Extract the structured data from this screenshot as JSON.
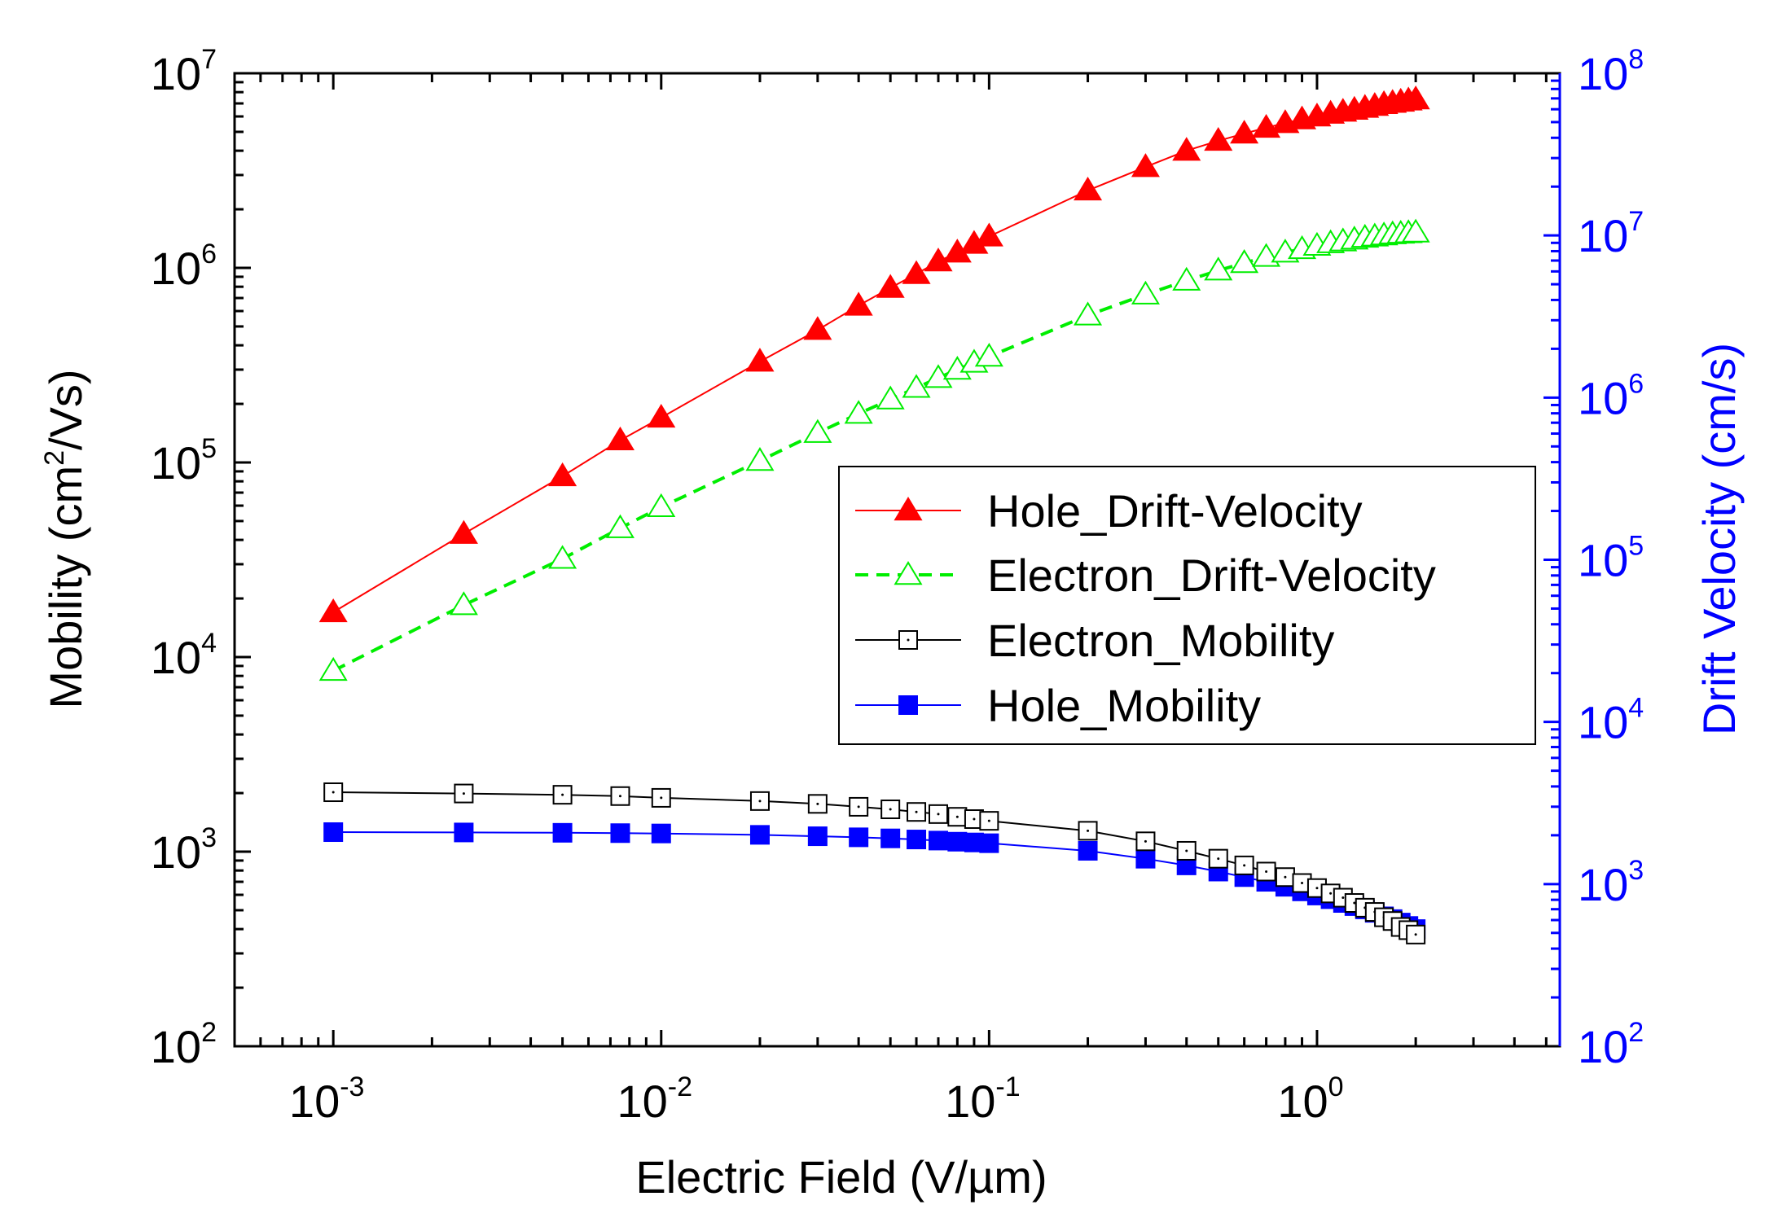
{
  "chart_data": {
    "type": "line",
    "title": "",
    "x_axis": {
      "label": "Electric Field (V/µm)",
      "scale": "log",
      "range": [
        0.0005,
        5.5
      ],
      "ticks": [
        {
          "base": "10",
          "exp": "-3"
        },
        {
          "base": "10",
          "exp": "-2"
        },
        {
          "base": "10",
          "exp": "-1"
        },
        {
          "base": "10",
          "exp": "0"
        }
      ]
    },
    "y_axis_left": {
      "label": "Mobility (cm²/Vs)",
      "label_parts": {
        "pre": "Mobility (cm",
        "sup": "2",
        "post": "/Vs)"
      },
      "scale": "log",
      "range": [
        100,
        10000000
      ],
      "ticks": [
        {
          "base": "10",
          "exp": "2"
        },
        {
          "base": "10",
          "exp": "3"
        },
        {
          "base": "10",
          "exp": "4"
        },
        {
          "base": "10",
          "exp": "5"
        },
        {
          "base": "10",
          "exp": "6"
        },
        {
          "base": "10",
          "exp": "7"
        }
      ]
    },
    "y_axis_right": {
      "label": "Drift Velocity (cm/s)",
      "scale": "log",
      "range": [
        100,
        100000000
      ],
      "color": "#0000ff",
      "ticks": [
        {
          "base": "10",
          "exp": "2"
        },
        {
          "base": "10",
          "exp": "3"
        },
        {
          "base": "10",
          "exp": "4"
        },
        {
          "base": "10",
          "exp": "5"
        },
        {
          "base": "10",
          "exp": "6"
        },
        {
          "base": "10",
          "exp": "7"
        },
        {
          "base": "10",
          "exp": "8"
        }
      ]
    },
    "x": [
      0.001,
      0.0025,
      0.005,
      0.0075,
      0.01,
      0.02,
      0.03,
      0.04,
      0.05,
      0.06,
      0.07,
      0.08,
      0.09,
      0.1,
      0.2,
      0.3,
      0.4,
      0.5,
      0.6,
      0.7,
      0.8,
      0.9,
      1.0,
      1.1,
      1.2,
      1.3,
      1.4,
      1.5,
      1.6,
      1.7,
      1.8,
      1.9,
      2.0
    ],
    "series": [
      {
        "name": "Hole_Drift-Velocity",
        "axis": "left",
        "color": "#ff0000",
        "line_style": "solid",
        "marker": "triangle-filled",
        "values": [
          17000,
          43000,
          85000,
          130000,
          170000,
          330000,
          480000,
          640000,
          790000,
          930000,
          1080000,
          1200000,
          1330000,
          1450000,
          2500000,
          3300000,
          4000000,
          4500000,
          4900000,
          5250000,
          5550000,
          5800000,
          6000000,
          6200000,
          6350000,
          6500000,
          6650000,
          6800000,
          6950000,
          7050000,
          7150000,
          7250000,
          7350000
        ]
      },
      {
        "name": "Electron_Drift-Velocity",
        "axis": "left",
        "color": "#00ee00",
        "line_style": "dashed",
        "marker": "triangle-open",
        "values": [
          8500,
          18500,
          32000,
          46000,
          59000,
          102000,
          142000,
          178000,
          211000,
          242000,
          272000,
          300000,
          326000,
          350000,
          570000,
          730000,
          860000,
          970000,
          1060000,
          1140000,
          1200000,
          1250000,
          1300000,
          1340000,
          1370000,
          1400000,
          1430000,
          1450000,
          1470000,
          1490000,
          1500000,
          1510000,
          1520000
        ]
      },
      {
        "name": "Electron_Mobility",
        "axis": "left",
        "color": "#000000",
        "line_style": "solid",
        "marker": "square-open",
        "values": [
          2020,
          1990,
          1960,
          1930,
          1890,
          1820,
          1760,
          1700,
          1650,
          1600,
          1560,
          1510,
          1470,
          1440,
          1280,
          1130,
          1010,
          920,
          850,
          790,
          740,
          690,
          650,
          610,
          580,
          545,
          515,
          490,
          460,
          440,
          410,
          395,
          375
        ]
      },
      {
        "name": "Hole_Mobility",
        "axis": "left",
        "color": "#0000ff",
        "line_style": "solid",
        "marker": "square-filled",
        "values": [
          1260,
          1255,
          1250,
          1245,
          1240,
          1220,
          1200,
          1185,
          1170,
          1155,
          1140,
          1125,
          1115,
          1105,
          1010,
          920,
          850,
          790,
          740,
          700,
          660,
          625,
          595,
          570,
          545,
          525,
          505,
          485,
          465,
          450,
          432,
          415,
          400
        ]
      }
    ],
    "legend": {
      "position": "center-right",
      "entries": [
        "Hole_Drift-Velocity",
        "Electron_Drift-Velocity",
        "Electron_Mobility",
        "Hole_Mobility"
      ]
    }
  }
}
